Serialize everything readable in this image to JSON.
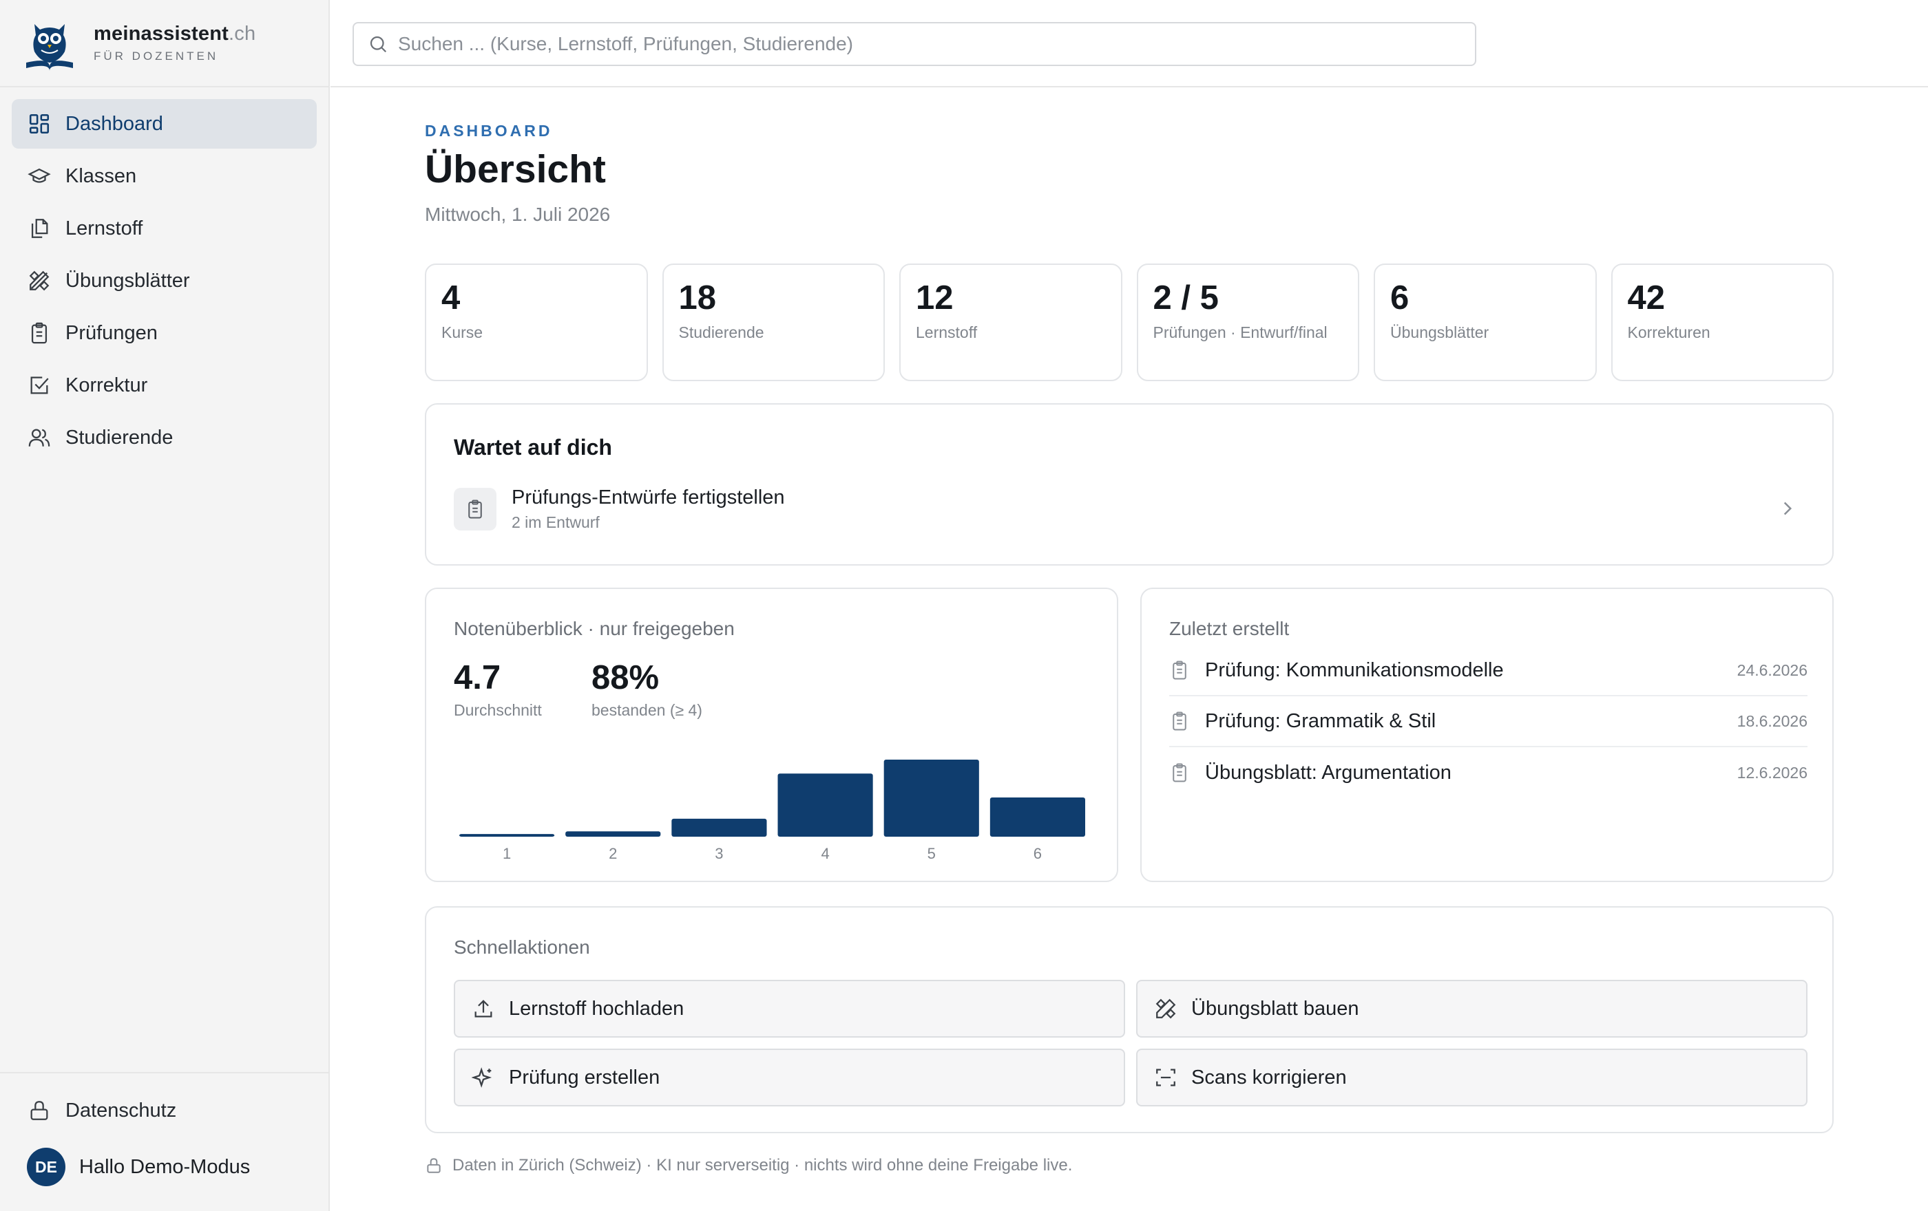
{
  "brand": {
    "name": "meinassistent",
    "tld": ".ch",
    "subtitle": "FÜR DOZENTEN"
  },
  "search": {
    "placeholder": "Suchen ... (Kurse, Lernstoff, Prüfungen, Studierende)",
    "value": ""
  },
  "sidebar": {
    "items": [
      {
        "label": "Dashboard",
        "icon": "dashboard-icon",
        "active": true
      },
      {
        "label": "Klassen",
        "icon": "graduation-cap-icon"
      },
      {
        "label": "Lernstoff",
        "icon": "files-icon"
      },
      {
        "label": "Übungsblätter",
        "icon": "pencil-ruler-icon"
      },
      {
        "label": "Prüfungen",
        "icon": "clipboard-icon"
      },
      {
        "label": "Korrektur",
        "icon": "check-square-icon"
      },
      {
        "label": "Studierende",
        "icon": "users-icon"
      }
    ],
    "privacy_label": "Datenschutz",
    "user": {
      "initials": "DE",
      "greeting": "Hallo Demo-Modus"
    }
  },
  "header": {
    "kicker": "DASHBOARD",
    "title": "Übersicht",
    "date": "Mittwoch, 1. Juli 2026"
  },
  "stats": [
    {
      "value": "4",
      "label": "Kurse"
    },
    {
      "value": "18",
      "label": "Studierende"
    },
    {
      "value": "12",
      "label": "Lernstoff"
    },
    {
      "value": "2 / 5",
      "label": "Prüfungen · Entwurf/final"
    },
    {
      "value": "6",
      "label": "Übungsblätter"
    },
    {
      "value": "42",
      "label": "Korrekturen"
    }
  ],
  "waiting": {
    "title": "Wartet auf dich",
    "task": {
      "title": "Prüfungs-Entwürfe fertigstellen",
      "subtitle": "2 im Entwurf"
    }
  },
  "grades": {
    "title": "Notenüberblick · nur freigegeben",
    "average_value": "4.7",
    "average_label": "Durchschnitt",
    "passed_value": "88%",
    "passed_label": "bestanden (≥ 4)"
  },
  "chart_data": {
    "type": "bar",
    "categories": [
      "1",
      "2",
      "3",
      "4",
      "5",
      "6"
    ],
    "values": [
      0.4,
      0.8,
      2.7,
      9.5,
      11.6,
      5.9
    ],
    "bar_color": "#0f3d6e",
    "title": "",
    "xlabel": "",
    "ylabel": "",
    "grid": false
  },
  "recent": {
    "title": "Zuletzt erstellt",
    "items": [
      {
        "title": "Prüfung: Kommunikationsmodelle",
        "date": "24.6.2026"
      },
      {
        "title": "Prüfung: Grammatik & Stil",
        "date": "18.6.2026"
      },
      {
        "title": "Übungsblatt: Argumentation",
        "date": "12.6.2026"
      }
    ]
  },
  "quick": {
    "title": "Schnellaktionen",
    "actions": [
      {
        "label": "Lernstoff hochladen",
        "icon": "upload-icon"
      },
      {
        "label": "Übungsblatt bauen",
        "icon": "pencil-ruler-icon"
      },
      {
        "label": "Prüfung erstellen",
        "icon": "sparkles-icon"
      },
      {
        "label": "Scans korrigieren",
        "icon": "scan-icon"
      }
    ]
  },
  "footer": {
    "note": "Daten in Zürich (Schweiz) · KI nur serverseitig · nichts wird ohne deine Freigabe live."
  },
  "colors": {
    "accent": "#0f3d6e",
    "kicker": "#2f6eb0",
    "sidebar_bg": "#f4f4f4"
  }
}
